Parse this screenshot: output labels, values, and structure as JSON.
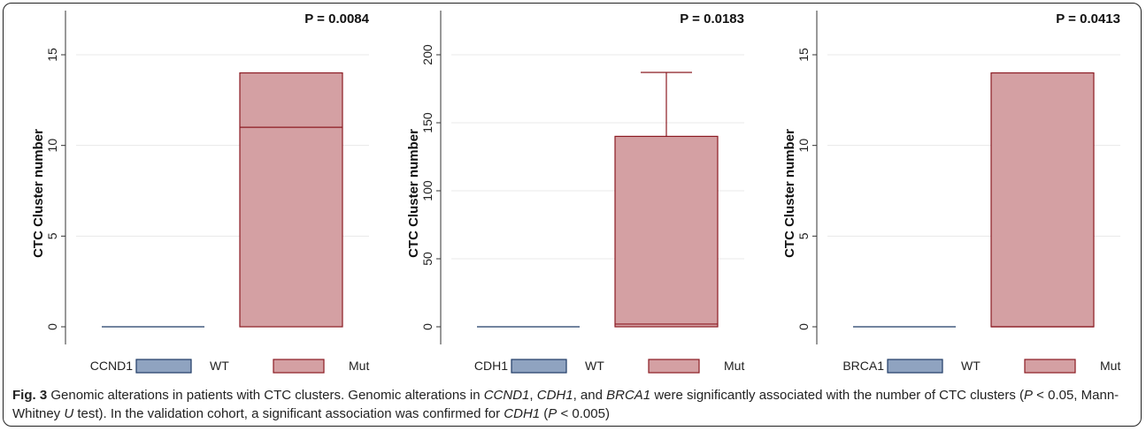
{
  "chart_data": [
    {
      "type": "box",
      "gene": "CCND1",
      "ylabel": "CTC Cluster number",
      "pvalue_label": "P = 0.0084",
      "ylim": [
        0,
        15.5
      ],
      "yticks": [
        0,
        5,
        10,
        15
      ],
      "categories": [
        "WT",
        "Mut"
      ],
      "boxes": [
        {
          "name": "WT",
          "q1": 0,
          "median": 0,
          "q3": 0,
          "whisker_low": 0,
          "whisker_high": 0
        },
        {
          "name": "Mut",
          "q1": 0,
          "median": 11,
          "q3": 14,
          "whisker_low": 0,
          "whisker_high": 14
        }
      ],
      "legend": [
        "WT",
        "Mut"
      ]
    },
    {
      "type": "box",
      "gene": "CDH1",
      "ylabel": "CTC Cluster number",
      "pvalue_label": "P = 0.0183",
      "ylim": [
        0,
        205
      ],
      "yticks": [
        0,
        50,
        100,
        150,
        200
      ],
      "categories": [
        "WT",
        "Mut"
      ],
      "boxes": [
        {
          "name": "WT",
          "q1": 0,
          "median": 0,
          "q3": 0,
          "whisker_low": 0,
          "whisker_high": 0
        },
        {
          "name": "Mut",
          "q1": 0,
          "median": 2,
          "q3": 140,
          "whisker_low": 0,
          "whisker_high": 187
        }
      ],
      "legend": [
        "WT",
        "Mut"
      ]
    },
    {
      "type": "box",
      "gene": "BRCA1",
      "ylabel": "CTC Cluster number",
      "pvalue_label": "P = 0.0413",
      "ylim": [
        0,
        15.5
      ],
      "yticks": [
        0,
        5,
        10,
        15
      ],
      "categories": [
        "WT",
        "Mut"
      ],
      "boxes": [
        {
          "name": "WT",
          "q1": 0,
          "median": 0,
          "q3": 0,
          "whisker_low": 0,
          "whisker_high": 0
        },
        {
          "name": "Mut",
          "q1": 0,
          "median": 0,
          "q3": 14,
          "whisker_low": 0,
          "whisker_high": 14
        }
      ],
      "legend": [
        "WT",
        "Mut"
      ]
    }
  ],
  "colors": {
    "wt_fill": "#8fa3c0",
    "wt_stroke": "#1f3b66",
    "mut_fill": "#d4a0a3",
    "mut_stroke": "#8b1a22",
    "grid": "#e8e8e8"
  },
  "caption": {
    "fig_label": "Fig. 3",
    "t1": " Genomic alterations in patients with CTC clusters. Genomic alterations in ",
    "g1": "CCND1",
    "t2": ", ",
    "g2": "CDH1",
    "t3": ", and ",
    "g3": "BRCA1",
    "t4": " were significantly associated with the number of CTC clusters (",
    "p1": "P",
    "t5": " < 0.05, Mann-Whitney ",
    "u": "U",
    "t6": " test). In the validation cohort, a significant association was confirmed for ",
    "g4": "CDH1",
    "t7": " (",
    "p2": "P",
    "t8": " < 0.005)"
  }
}
